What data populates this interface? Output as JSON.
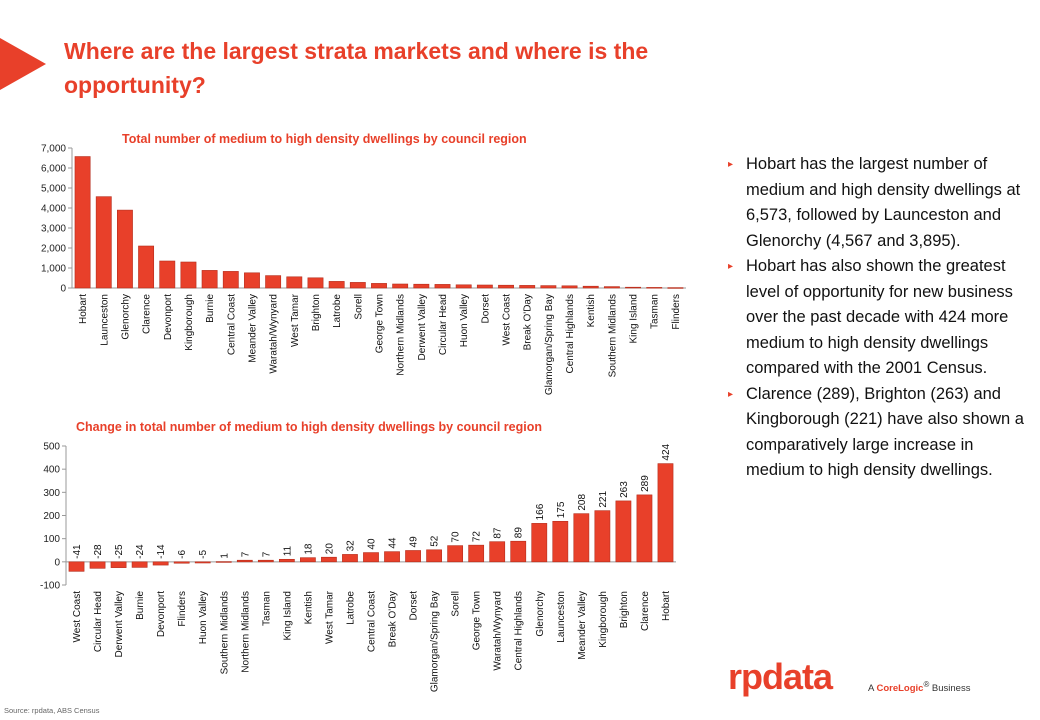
{
  "header": {
    "title": "Where are the largest strata markets and where is the opportunity?"
  },
  "chart_data": [
    {
      "type": "bar",
      "title": "Total number of medium to high density dwellings by council region",
      "ylim": [
        0,
        7000
      ],
      "yticks": [
        "7,000",
        "6,000",
        "5,000",
        "4,000",
        "3,000",
        "2,000",
        "1,000",
        "0"
      ],
      "ytick_values": [
        7000,
        6000,
        5000,
        4000,
        3000,
        2000,
        1000,
        0
      ],
      "categories": [
        "Hobart",
        "Launceston",
        "Glenorchy",
        "Clarence",
        "Devonport",
        "Kingborough",
        "Burnie",
        "Central Coast",
        "Meander Valley",
        "Waratah/Wynyard",
        "West Tamar",
        "Brighton",
        "Latrobe",
        "Sorell",
        "George Town",
        "Northern Midlands",
        "Derwent Valley",
        "Circular Head",
        "Huon Valley",
        "Dorset",
        "West Coast",
        "Break O'Day",
        "Glamorgan/Spring Bay",
        "Central Highlands",
        "Kentish",
        "Southern Midlands",
        "King Island",
        "Tasman",
        "Flinders"
      ],
      "values": [
        6573,
        4567,
        3895,
        2100,
        1350,
        1300,
        880,
        830,
        760,
        620,
        560,
        510,
        330,
        280,
        230,
        200,
        190,
        180,
        160,
        150,
        140,
        130,
        120,
        110,
        90,
        70,
        40,
        30,
        20
      ],
      "color": "#e8402a",
      "grid": false
    },
    {
      "type": "bar",
      "title": "Change in total number of medium to high density dwellings by council region",
      "ylim": [
        -100,
        500
      ],
      "yticks": [
        "500",
        "400",
        "300",
        "200",
        "100",
        "0",
        "-100"
      ],
      "ytick_values": [
        500,
        400,
        300,
        200,
        100,
        0,
        -100
      ],
      "categories": [
        "West Coast",
        "Circular Head",
        "Derwent Valley",
        "Burnie",
        "Devonport",
        "Flinders",
        "Huon Valley",
        "Southern Midlands",
        "Northern Midlands",
        "Tasman",
        "King Island",
        "Kentish",
        "West Tamar",
        "Latrobe",
        "Central Coast",
        "Break O'Day",
        "Dorset",
        "Glamorgan/Spring Bay",
        "Sorell",
        "George Town",
        "Waratah/Wynyard",
        "Central Highlands",
        "Glenorchy",
        "Launceston",
        "Meander Valley",
        "Kingborough",
        "Brighton",
        "Clarence",
        "Hobart"
      ],
      "values": [
        -41,
        -28,
        -25,
        -24,
        -14,
        -6,
        -5,
        1,
        7,
        7,
        11,
        18,
        20,
        32,
        40,
        44,
        49,
        52,
        70,
        72,
        87,
        89,
        166,
        175,
        208,
        221,
        263,
        289,
        424
      ],
      "labels": [
        "-41",
        "-28",
        "-25",
        "-24",
        "-14",
        "-6",
        "-5",
        "1",
        "7",
        "7",
        "11",
        "18",
        "20",
        "32",
        "40",
        "44",
        "49",
        "52",
        "70",
        "72",
        "87",
        "89",
        "166",
        "175",
        "208",
        "221",
        "263",
        "289",
        "424"
      ],
      "color": "#e8402a",
      "grid": false
    }
  ],
  "bullets": [
    "Hobart has the largest number of medium and high density dwellings at 6,573, followed by Launceston and Glenorchy (4,567 and 3,895).",
    "Hobart has also shown the greatest level of opportunity for new business over the past decade with 424 more medium to high density dwellings compared with the 2001 Census.",
    "Clarence (289), Brighton (263) and Kingborough (221) have also shown a comparatively large increase in medium to high density dwellings."
  ],
  "bullet_marker": "▸",
  "branding": {
    "logo": "rpdata",
    "tagline_prefix": "A",
    "tagline_brand": "CoreLogic",
    "tagline_mark": "®",
    "tagline_suffix": "Business"
  },
  "footer": {
    "source": "Source: rpdata, ABS Census"
  },
  "colors": {
    "accent": "#e8402a",
    "bar": "#e8402a"
  }
}
